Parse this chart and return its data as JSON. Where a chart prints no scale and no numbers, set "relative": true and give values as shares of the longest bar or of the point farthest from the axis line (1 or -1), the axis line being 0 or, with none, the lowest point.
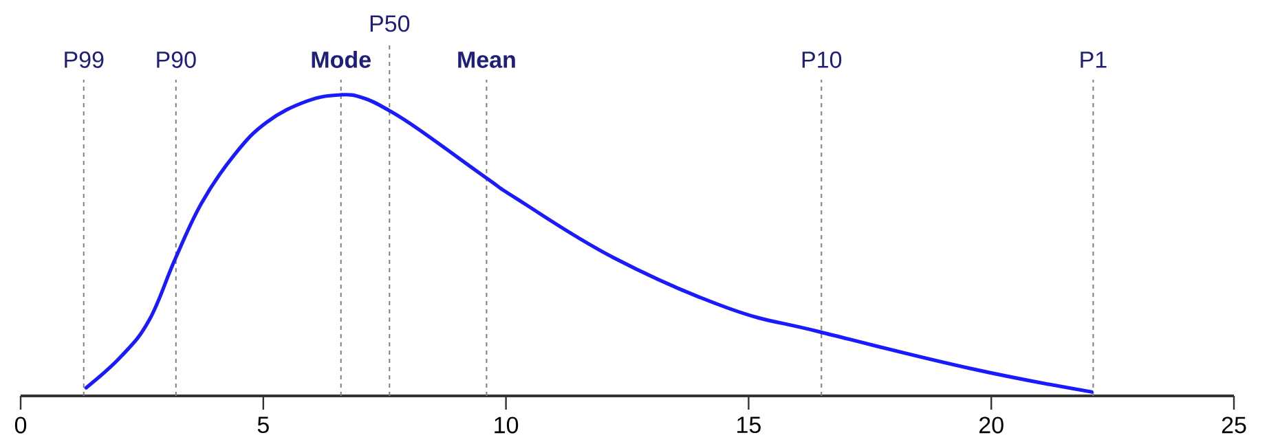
{
  "chart_data": {
    "type": "line",
    "relative": true,
    "marker": "none",
    "line_style": "solid",
    "xlim": [
      0,
      25
    ],
    "xticks": [
      0,
      5,
      10,
      15,
      20,
      25
    ],
    "series": [
      {
        "color": "#1a1aff",
        "x": [
          1.35,
          2.07,
          2.65,
          3.18,
          3.73,
          4.4,
          5.07,
          5.9,
          6.6,
          7.07,
          7.58,
          8.23,
          9.62,
          10.23,
          12.23,
          14.57,
          16.48,
          19.57,
          22.07
        ],
        "values": [
          0.027,
          0.131,
          0.252,
          0.453,
          0.641,
          0.8,
          0.909,
          0.979,
          1,
          0.989,
          0.949,
          0.882,
          0.721,
          0.654,
          0.458,
          0.292,
          0.212,
          0.091,
          0.013
        ]
      }
    ],
    "ref_lines": [
      {
        "axis": "x",
        "value": 1.3,
        "label": "P99",
        "color": "#808080",
        "line_style": "dashed"
      },
      {
        "axis": "x",
        "value": 3.2,
        "label": "P90",
        "color": "#808080",
        "line_style": "dashed"
      },
      {
        "axis": "x",
        "value": 6.6,
        "label": "**Mode**",
        "color": "#808080",
        "line_style": "dashed"
      },
      {
        "axis": "x",
        "value": 7.6,
        "label": "P50",
        "color": "#808080",
        "line_style": "dashed"
      },
      {
        "axis": "x",
        "value": 9.6,
        "label": "**Mean**",
        "color": "#808080",
        "line_style": "dashed"
      },
      {
        "axis": "x",
        "value": 16.5,
        "label": "P10",
        "color": "#808080",
        "line_style": "dashed"
      },
      {
        "axis": "x",
        "value": 22.1,
        "label": "P1",
        "color": "#808080",
        "line_style": "dashed"
      }
    ]
  }
}
